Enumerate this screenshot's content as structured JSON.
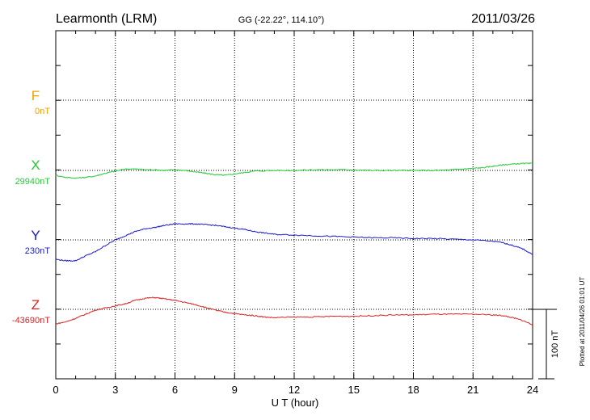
{
  "header": {
    "station": "Learmonth (LRM)",
    "coords": "GG (-22.22°, 114.10°)",
    "date": "2011/03/26"
  },
  "footer": {
    "plotted": "Plotted at 2011/04/26 01:01  UT"
  },
  "colors": {
    "F": "#f0a000",
    "X": "#22cc33",
    "Y": "#1a1acc",
    "Z": "#dd2222",
    "axis": "#000000",
    "grid": "#000000"
  },
  "chart_data": {
    "type": "line",
    "xlabel": "U T (hour)",
    "xlim": [
      0,
      24
    ],
    "xticks": [
      0,
      3,
      6,
      9,
      12,
      15,
      18,
      21,
      24
    ],
    "scale_label": "100 nT",
    "scale_nT": 100,
    "series": [
      {
        "name": "F",
        "baseline_label": "0nT",
        "x": [],
        "y": []
      },
      {
        "name": "X",
        "baseline_label": "29940nT",
        "x": [
          0,
          0.5,
          1,
          1.5,
          2,
          2.5,
          3,
          3.5,
          4,
          4.5,
          5,
          5.5,
          6,
          6.5,
          7,
          7.5,
          8,
          8.5,
          9,
          9.5,
          10,
          11,
          12,
          13,
          14,
          15,
          16,
          17,
          18,
          19,
          20,
          20.5,
          21,
          21.5,
          22,
          22.5,
          23,
          23.5,
          24
        ],
        "y": [
          -7,
          -10,
          -11,
          -10,
          -8,
          -4,
          -1,
          2,
          2,
          1,
          1,
          0,
          1,
          0,
          -2,
          -4,
          -6,
          -7,
          -5,
          -3,
          -1,
          0,
          0,
          1,
          1,
          1,
          0,
          0,
          0,
          0,
          1,
          2,
          3,
          4,
          6,
          8,
          9,
          10,
          10
        ]
      },
      {
        "name": "Y",
        "baseline_label": "230nT",
        "x": [
          0,
          0.5,
          1,
          1.5,
          2,
          2.5,
          3,
          3.5,
          4,
          4.5,
          5,
          5.5,
          6,
          6.5,
          7,
          7.5,
          8,
          8.5,
          9,
          9.5,
          10,
          10.5,
          11,
          12,
          13,
          14,
          15,
          16,
          17,
          18,
          19,
          20,
          21,
          22,
          22.5,
          23,
          23.5,
          24
        ],
        "y": [
          -28,
          -30,
          -30,
          -23,
          -17,
          -8,
          0,
          6,
          12,
          16,
          18,
          21,
          23,
          23,
          23,
          22,
          21,
          19,
          17,
          15,
          12,
          10,
          8,
          7,
          6,
          5,
          4,
          3,
          3,
          2,
          2,
          1,
          0,
          -2,
          -4,
          -8,
          -13,
          -21
        ]
      },
      {
        "name": "Z",
        "baseline_label": "-43690nT",
        "x": [
          0,
          0.5,
          1,
          1.5,
          2,
          2.5,
          3,
          3.5,
          4,
          4.5,
          5,
          5.5,
          6,
          6.5,
          7,
          7.5,
          8,
          8.5,
          9,
          9.5,
          10,
          10.5,
          11,
          12,
          13,
          14,
          15,
          16,
          17,
          18,
          19,
          20,
          21,
          22,
          22.5,
          23,
          23.5,
          24
        ],
        "y": [
          -21,
          -18,
          -13,
          -7,
          -1,
          2,
          5,
          8,
          13,
          16,
          17,
          15,
          13,
          10,
          7,
          3,
          -1,
          -4,
          -6,
          -8,
          -9,
          -11,
          -12,
          -11,
          -11,
          -10,
          -10,
          -9,
          -8,
          -8,
          -7,
          -7,
          -7,
          -8,
          -9,
          -12,
          -16,
          -22
        ]
      }
    ]
  }
}
